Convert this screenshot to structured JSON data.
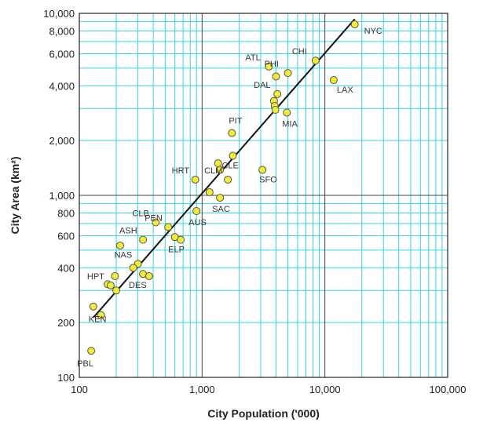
{
  "chart_data": {
    "type": "scatter",
    "xscale": "log",
    "yscale": "log",
    "xlabel": "City Population ('000)",
    "ylabel": "City Area (km²)",
    "xlim": [
      100,
      100000
    ],
    "ylim": [
      100,
      10000
    ],
    "x_ticks": [
      {
        "value": 100,
        "label": "100"
      },
      {
        "value": 1000,
        "label": "1,000"
      },
      {
        "value": 10000,
        "label": "10,000"
      },
      {
        "value": 100000,
        "label": "100,000"
      }
    ],
    "y_ticks": [
      {
        "value": 100,
        "label": "100"
      },
      {
        "value": 200,
        "label": "200"
      },
      {
        "value": 400,
        "label": "400"
      },
      {
        "value": 600,
        "label": "600"
      },
      {
        "value": 800,
        "label": "800"
      },
      {
        "value": 1000,
        "label": "1,000"
      },
      {
        "value": 2000,
        "label": "2,000"
      },
      {
        "value": 4000,
        "label": "4,000"
      },
      {
        "value": 6000,
        "label": "6,000"
      },
      {
        "value": 8000,
        "label": "8,000"
      },
      {
        "value": 10000,
        "label": "10,000"
      }
    ],
    "grid": true,
    "grid_color": "#33d6e0",
    "marker_color": "#f4ec33",
    "fit_line": {
      "x": [
        130,
        17500
      ],
      "y": [
        213,
        9300
      ],
      "color": "#111111"
    },
    "points": [
      {
        "label": "NYC",
        "x": 17500,
        "y": 8700
      },
      {
        "label": "CHI",
        "x": 8400,
        "y": 5500
      },
      {
        "label": "LAX",
        "x": 11800,
        "y": 4300
      },
      {
        "label": "ATL",
        "x": 3500,
        "y": 5100
      },
      {
        "label": "PHI",
        "x": 5000,
        "y": 4700
      },
      {
        "label": "",
        "x": 4000,
        "y": 4500
      },
      {
        "label": "DAL",
        "x": 4100,
        "y": 3600
      },
      {
        "label": "",
        "x": 3850,
        "y": 3300
      },
      {
        "label": "",
        "x": 3900,
        "y": 3100
      },
      {
        "label": "",
        "x": 3950,
        "y": 2950
      },
      {
        "label": "MIA",
        "x": 4900,
        "y": 2850
      },
      {
        "label": "PIT",
        "x": 1750,
        "y": 2200
      },
      {
        "label": "CLE",
        "x": 1780,
        "y": 1650
      },
      {
        "label": "SFO",
        "x": 3100,
        "y": 1380
      },
      {
        "label": "",
        "x": 1350,
        "y": 1500
      },
      {
        "label": "",
        "x": 1400,
        "y": 1380
      },
      {
        "label": "HRT",
        "x": 880,
        "y": 1220
      },
      {
        "label": "CLM",
        "x": 1620,
        "y": 1220
      },
      {
        "label": "",
        "x": 1150,
        "y": 1040
      },
      {
        "label": "SAC",
        "x": 1400,
        "y": 970
      },
      {
        "label": "AUS",
        "x": 900,
        "y": 820
      },
      {
        "label": "CLB",
        "x": 420,
        "y": 710
      },
      {
        "label": "PEN",
        "x": 530,
        "y": 670
      },
      {
        "label": "ASH",
        "x": 330,
        "y": 570
      },
      {
        "label": "",
        "x": 600,
        "y": 590
      },
      {
        "label": "ELP",
        "x": 670,
        "y": 570
      },
      {
        "label": "",
        "x": 215,
        "y": 530
      },
      {
        "label": "NAS",
        "x": 300,
        "y": 420
      },
      {
        "label": "",
        "x": 275,
        "y": 400
      },
      {
        "label": "DES",
        "x": 330,
        "y": 370
      },
      {
        "label": "",
        "x": 370,
        "y": 360
      },
      {
        "label": "",
        "x": 195,
        "y": 360
      },
      {
        "label": "",
        "x": 170,
        "y": 325
      },
      {
        "label": "HPT",
        "x": 180,
        "y": 320
      },
      {
        "label": "",
        "x": 200,
        "y": 300
      },
      {
        "label": "KEN",
        "x": 130,
        "y": 245
      },
      {
        "label": "",
        "x": 150,
        "y": 220
      },
      {
        "label": "PBL",
        "x": 125,
        "y": 140
      }
    ]
  }
}
